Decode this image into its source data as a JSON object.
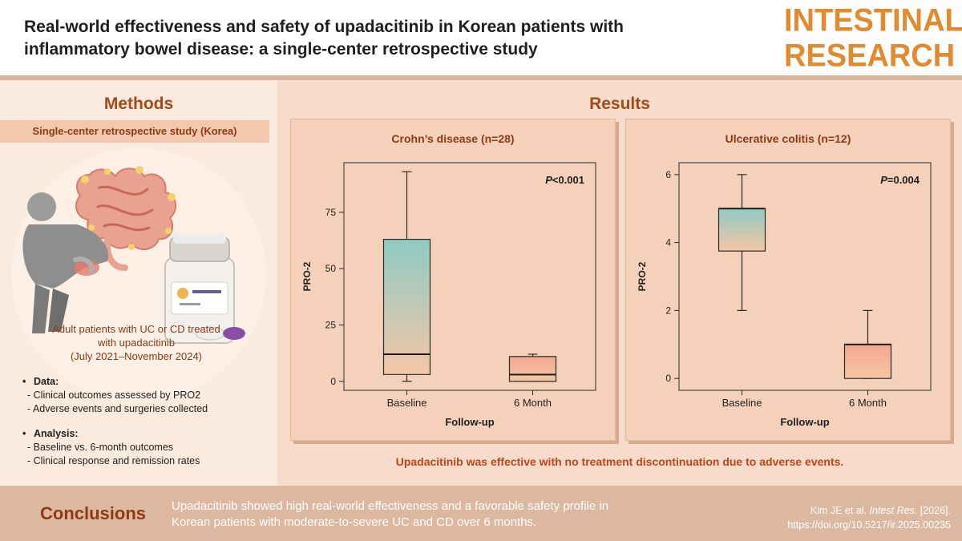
{
  "header": {
    "title_line1": "Real-world effectiveness and safety of upadacitinib in Korean patients with",
    "title_line2": "inflammatory bowel disease: a single-center retrospective study",
    "logo_line1": "INTESTINAL",
    "logo_line2": "RESEARCH"
  },
  "methods": {
    "title": "Methods",
    "band": "Single-center retrospective study (Korea)",
    "patients_line1": "Adult patients with UC or CD treated",
    "patients_line2": "with upadacitinib",
    "patients_line3": "(July 2021–November 2024)",
    "data_head": "Data:",
    "data_items": [
      "- Clinical outcomes assessed by PRO2",
      "- Adverse events and surgeries collected"
    ],
    "analysis_head": "Analysis:",
    "analysis_items": [
      "- Baseline vs. 6-month outcomes",
      "- Clinical response and remission rates"
    ]
  },
  "results": {
    "title": "Results",
    "caption": "Upadacitinib was effective with no treatment discontinuation due to adverse events."
  },
  "chart_data": [
    {
      "type": "box",
      "title": "Crohn’s disease (n=28)",
      "xlabel": "Follow-up",
      "ylabel": "PRO-2",
      "categories": [
        "Baseline",
        "6 Month"
      ],
      "boxes": [
        {
          "category": "Baseline",
          "min": 0,
          "q1": 3,
          "median": 12,
          "q3": 63,
          "max": 93
        },
        {
          "category": "6 Month",
          "min": 0,
          "q1": 0,
          "median": 3,
          "q3": 11,
          "max": 12
        }
      ],
      "yticks": [
        0,
        25,
        50,
        75
      ],
      "ytick_labels": [
        "0",
        "25",
        "50",
        "75"
      ],
      "ylim": [
        -4,
        97
      ],
      "p_prefix": "P",
      "p_suffix": "<0.001"
    },
    {
      "type": "box",
      "title": "Ulcerative colitis (n=12)",
      "xlabel": "Follow-up",
      "ylabel": "PRO-2",
      "categories": [
        "Baseline",
        "6 Month"
      ],
      "boxes": [
        {
          "category": "Baseline",
          "min": 2,
          "q1": 3.75,
          "median": 5,
          "q3": 5,
          "max": 6
        },
        {
          "category": "6 Month",
          "min": 0,
          "q1": 0,
          "median": 1,
          "q3": 1,
          "max": 2
        }
      ],
      "yticks": [
        0,
        2,
        4,
        6
      ],
      "ytick_labels": [
        "0",
        "2",
        "4",
        "6"
      ],
      "ylim": [
        -0.35,
        6.35
      ],
      "p_prefix": "P",
      "p_suffix": "=0.004"
    }
  ],
  "colors": {
    "accent": "#a34a1a",
    "logo": "#e48a2e",
    "box_teal": "#8fcac4",
    "box_peach": "#f6c6a6",
    "box_salmon": "#f3a791"
  },
  "conclusions": {
    "label": "Conclusions",
    "line1": "Upadacitinib showed high real-world effectiveness and a favorable safety profile in",
    "line2": "Korean patients with moderate-to-severe UC and CD over 6 months."
  },
  "citation": {
    "authors": "Kim JE et al.",
    "journal": "Intest Res.",
    "year": "[2026].",
    "doi": "https://doi.org/10.5217/ir.2025.00235"
  }
}
